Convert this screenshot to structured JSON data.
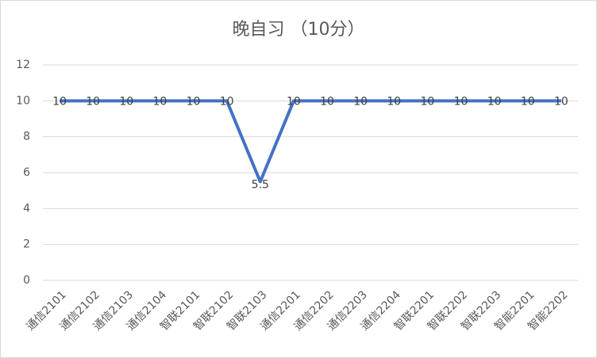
{
  "chart_data": {
    "type": "line",
    "title": "晚自习 （10分）",
    "categories": [
      "通信2101",
      "通信2102",
      "通信2103",
      "通信2104",
      "智联2101",
      "智联2102",
      "智联2103",
      "通信2201",
      "通信2202",
      "通信2203",
      "通信2204",
      "智联2201",
      "智联2202",
      "智联2203",
      "智能2201",
      "智能2202"
    ],
    "values": [
      10,
      10,
      10,
      10,
      10,
      10,
      5.5,
      10,
      10,
      10,
      10,
      10,
      10,
      10,
      10,
      10
    ],
    "color": "#4472c4",
    "ylim": [
      0,
      12
    ],
    "yticks": [
      0,
      2,
      4,
      6,
      8,
      10,
      12
    ],
    "grid": true
  }
}
